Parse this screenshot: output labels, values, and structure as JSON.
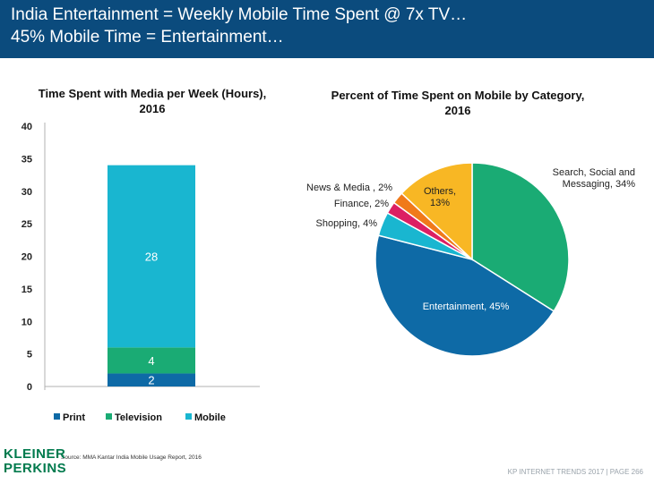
{
  "header": {
    "line1": "India Entertainment = Weekly Mobile Time Spent @ 7x TV…",
    "line2": "45% Mobile Time = Entertainment…"
  },
  "chart_data": [
    {
      "type": "bar",
      "title": "Time Spent with Media per Week (Hours), 2016",
      "categories": [
        "2016"
      ],
      "stacked": true,
      "series": [
        {
          "name": "Print",
          "values": [
            2
          ],
          "label": "2",
          "color": "#0e6aa6"
        },
        {
          "name": "Television",
          "values": [
            4
          ],
          "label": "4",
          "color": "#1aab74"
        },
        {
          "name": "Mobile",
          "values": [
            28
          ],
          "label": "28",
          "color": "#19b6d0"
        }
      ],
      "ylim": [
        0,
        40
      ],
      "yticks": [
        "0",
        "5",
        "10",
        "15",
        "20",
        "25",
        "30",
        "35",
        "40"
      ],
      "grid": false,
      "legend": "bottom"
    },
    {
      "type": "pie",
      "title": "Percent of Time Spent on Mobile by Category, 2016",
      "slices": [
        {
          "name": "Search, Social and Messaging",
          "value": 34,
          "label_lines": [
            "Search, Social and",
            "Messaging, 34%"
          ],
          "color": "#1aab74"
        },
        {
          "name": "Entertainment",
          "value": 45,
          "label_lines": [
            "Entertainment, 45%"
          ],
          "color": "#0e6aa6"
        },
        {
          "name": "Shopping",
          "value": 4,
          "label_lines": [
            "Shopping, 4%"
          ],
          "color": "#19b6d0"
        },
        {
          "name": "Finance",
          "value": 2,
          "label_lines": [
            "Finance, 2%"
          ],
          "color": "#dc1f63"
        },
        {
          "name": "News & Media",
          "value": 2,
          "label_lines": [
            "News & Media , 2%"
          ],
          "color": "#f07a1a"
        },
        {
          "name": "Others",
          "value": 13,
          "label_lines": [
            "Others,",
            "13%"
          ],
          "color": "#f8b724"
        }
      ]
    }
  ],
  "source": "Source: MMA Kantar India Mobile Usage Report, 2016",
  "logo": {
    "line1": "KLEINER",
    "line2": "PERKINS",
    "color": "#007a4d"
  },
  "footer": "KP INTERNET TRENDS 2017   |   PAGE 266"
}
